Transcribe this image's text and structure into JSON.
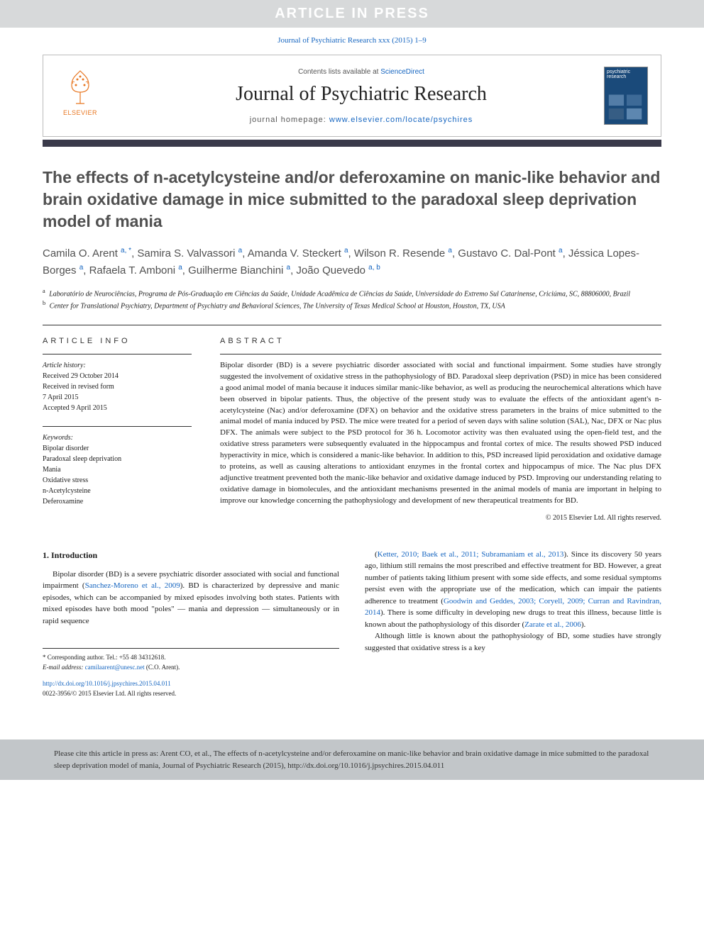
{
  "banner": "ARTICLE IN PRESS",
  "journalRef": "Journal of Psychiatric Research xxx (2015) 1–9",
  "header": {
    "contentsPrefix": "Contents lists available at ",
    "contentsLink": "ScienceDirect",
    "journalName": "Journal of Psychiatric Research",
    "homepagePrefix": "journal homepage: ",
    "homepageUrl": "www.elsevier.com/locate/psychires",
    "elsevierLabel": "ELSEVIER",
    "coverLabel": "psychiatric research"
  },
  "title": "The effects of n-acetylcysteine and/or deferoxamine on manic-like behavior and brain oxidative damage in mice submitted to the paradoxal sleep deprivation model of mania",
  "authorsHtml": "Camila O. Arent <0>a, *</0>, Samira S. Valvassori<0>a</0>, Amanda V. Steckert<0>a</0>, Wilson R. Resende<0>a</0>, Gustavo C. Dal-Pont<0>a</0>, Jéssica Lopes-Borges<0>a</0>, Rafaela T. Amboni<0>a</0>, Guilherme Bianchini<0>a</0>, João Quevedo<0>a, b</0>",
  "affiliations": [
    {
      "sup": "a",
      "text": "Laboratório de Neurociências, Programa de Pós-Graduação em Ciências da Saúde, Unidade Acadêmica de Ciências da Saúde, Universidade do Extremo Sul Catarinense, Criciúma, SC, 88806000, Brazil"
    },
    {
      "sup": "b",
      "text": "Center for Translational Psychiatry, Department of Psychiatry and Behavioral Sciences, The University of Texas Medical School at Houston, Houston, TX, USA"
    }
  ],
  "articleInfo": {
    "heading": "ARTICLE INFO",
    "historyLabel": "Article history:",
    "history": [
      "Received 29 October 2014",
      "Received in revised form",
      "7 April 2015",
      "Accepted 9 April 2015"
    ],
    "keywordsLabel": "Keywords:",
    "keywords": [
      "Bipolar disorder",
      "Paradoxal sleep deprivation",
      "Mania",
      "Oxidative stress",
      "n-Acetylcysteine",
      "Deferoxamine"
    ]
  },
  "abstract": {
    "heading": "ABSTRACT",
    "text": "Bipolar disorder (BD) is a severe psychiatric disorder associated with social and functional impairment. Some studies have strongly suggested the involvement of oxidative stress in the pathophysiology of BD. Paradoxal sleep deprivation (PSD) in mice has been considered a good animal model of mania because it induces similar manic-like behavior, as well as producing the neurochemical alterations which have been observed in bipolar patients. Thus, the objective of the present study was to evaluate the effects of the antioxidant agent's n-acetylcysteine (Nac) and/or deferoxamine (DFX) on behavior and the oxidative stress parameters in the brains of mice submitted to the animal model of mania induced by PSD. The mice were treated for a period of seven days with saline solution (SAL), Nac, DFX or Nac plus DFX. The animals were subject to the PSD protocol for 36 h. Locomotor activity was then evaluated using the open-field test, and the oxidative stress parameters were subsequently evaluated in the hippocampus and frontal cortex of mice. The results showed PSD induced hyperactivity in mice, which is considered a manic-like behavior. In addition to this, PSD increased lipid peroxidation and oxidative damage to proteins, as well as causing alterations to antioxidant enzymes in the frontal cortex and hippocampus of mice. The Nac plus DFX adjunctive treatment prevented both the manic-like behavior and oxidative damage induced by PSD. Improving our understanding relating to oxidative damage in biomolecules, and the antioxidant mechanisms presented in the animal models of mania are important in helping to improve our knowledge concerning the pathophysiology and development of new therapeutical treatments for BD.",
    "copyright": "© 2015 Elsevier Ltd. All rights reserved."
  },
  "intro": {
    "heading": "1. Introduction",
    "leftParas": [
      "Bipolar disorder (BD) is a severe psychiatric disorder associated with social and functional impairment (<a>Sanchez-Moreno et al., 2009</a>). BD is characterized by depressive and manic episodes, which can be accompanied by mixed episodes involving both states. Patients with mixed episodes have both mood \"poles\" — mania and depression — simultaneously or in rapid sequence"
    ],
    "rightParas": [
      "(<a>Ketter, 2010; Baek et al., 2011; Subramaniam et al., 2013</a>). Since its discovery 50 years ago, lithium still remains the most prescribed and effective treatment for BD. However, a great number of patients taking lithium present with some side effects, and some residual symptoms persist even with the appropriate use of the medication, which can impair the patients adherence to treatment (<a>Goodwin and Geddes, 2003; Coryell, 2009; Curran and Ravindran, 2014</a>). There is some difficulty in developing new drugs to treat this illness, because little is known about the pathophysiology of this disorder (<a>Zarate et al., 2006</a>).",
      "Although little is known about the pathophysiology of BD, some studies have strongly suggested that oxidative stress is a key"
    ]
  },
  "footnotes": {
    "corr": "* Corresponding author. Tel.: +55 48 34312618.",
    "emailLabel": "E-mail address: ",
    "email": "camilaarent@unesc.net",
    "emailSuffix": " (C.O. Arent)."
  },
  "doi": {
    "url": "http://dx.doi.org/10.1016/j.jpsychires.2015.04.011",
    "issn": "0022-3956/© 2015 Elsevier Ltd. All rights reserved."
  },
  "citation": "Please cite this article in press as: Arent CO, et al., The effects of n-acetylcysteine and/or deferoxamine on manic-like behavior and brain oxidative damage in mice submitted to the paradoxal sleep deprivation model of mania, Journal of Psychiatric Research (2015), http://dx.doi.org/10.1016/j.jpsychires.2015.04.011",
  "colors": {
    "link": "#1565c0",
    "banner_bg": "#d7d9da",
    "banner_text": "#ffffff",
    "separator": "#3a3a4a",
    "elsevier_orange": "#e87722",
    "citation_bg": "#c2c6c9",
    "cover_bg": "#1a4a7a"
  }
}
